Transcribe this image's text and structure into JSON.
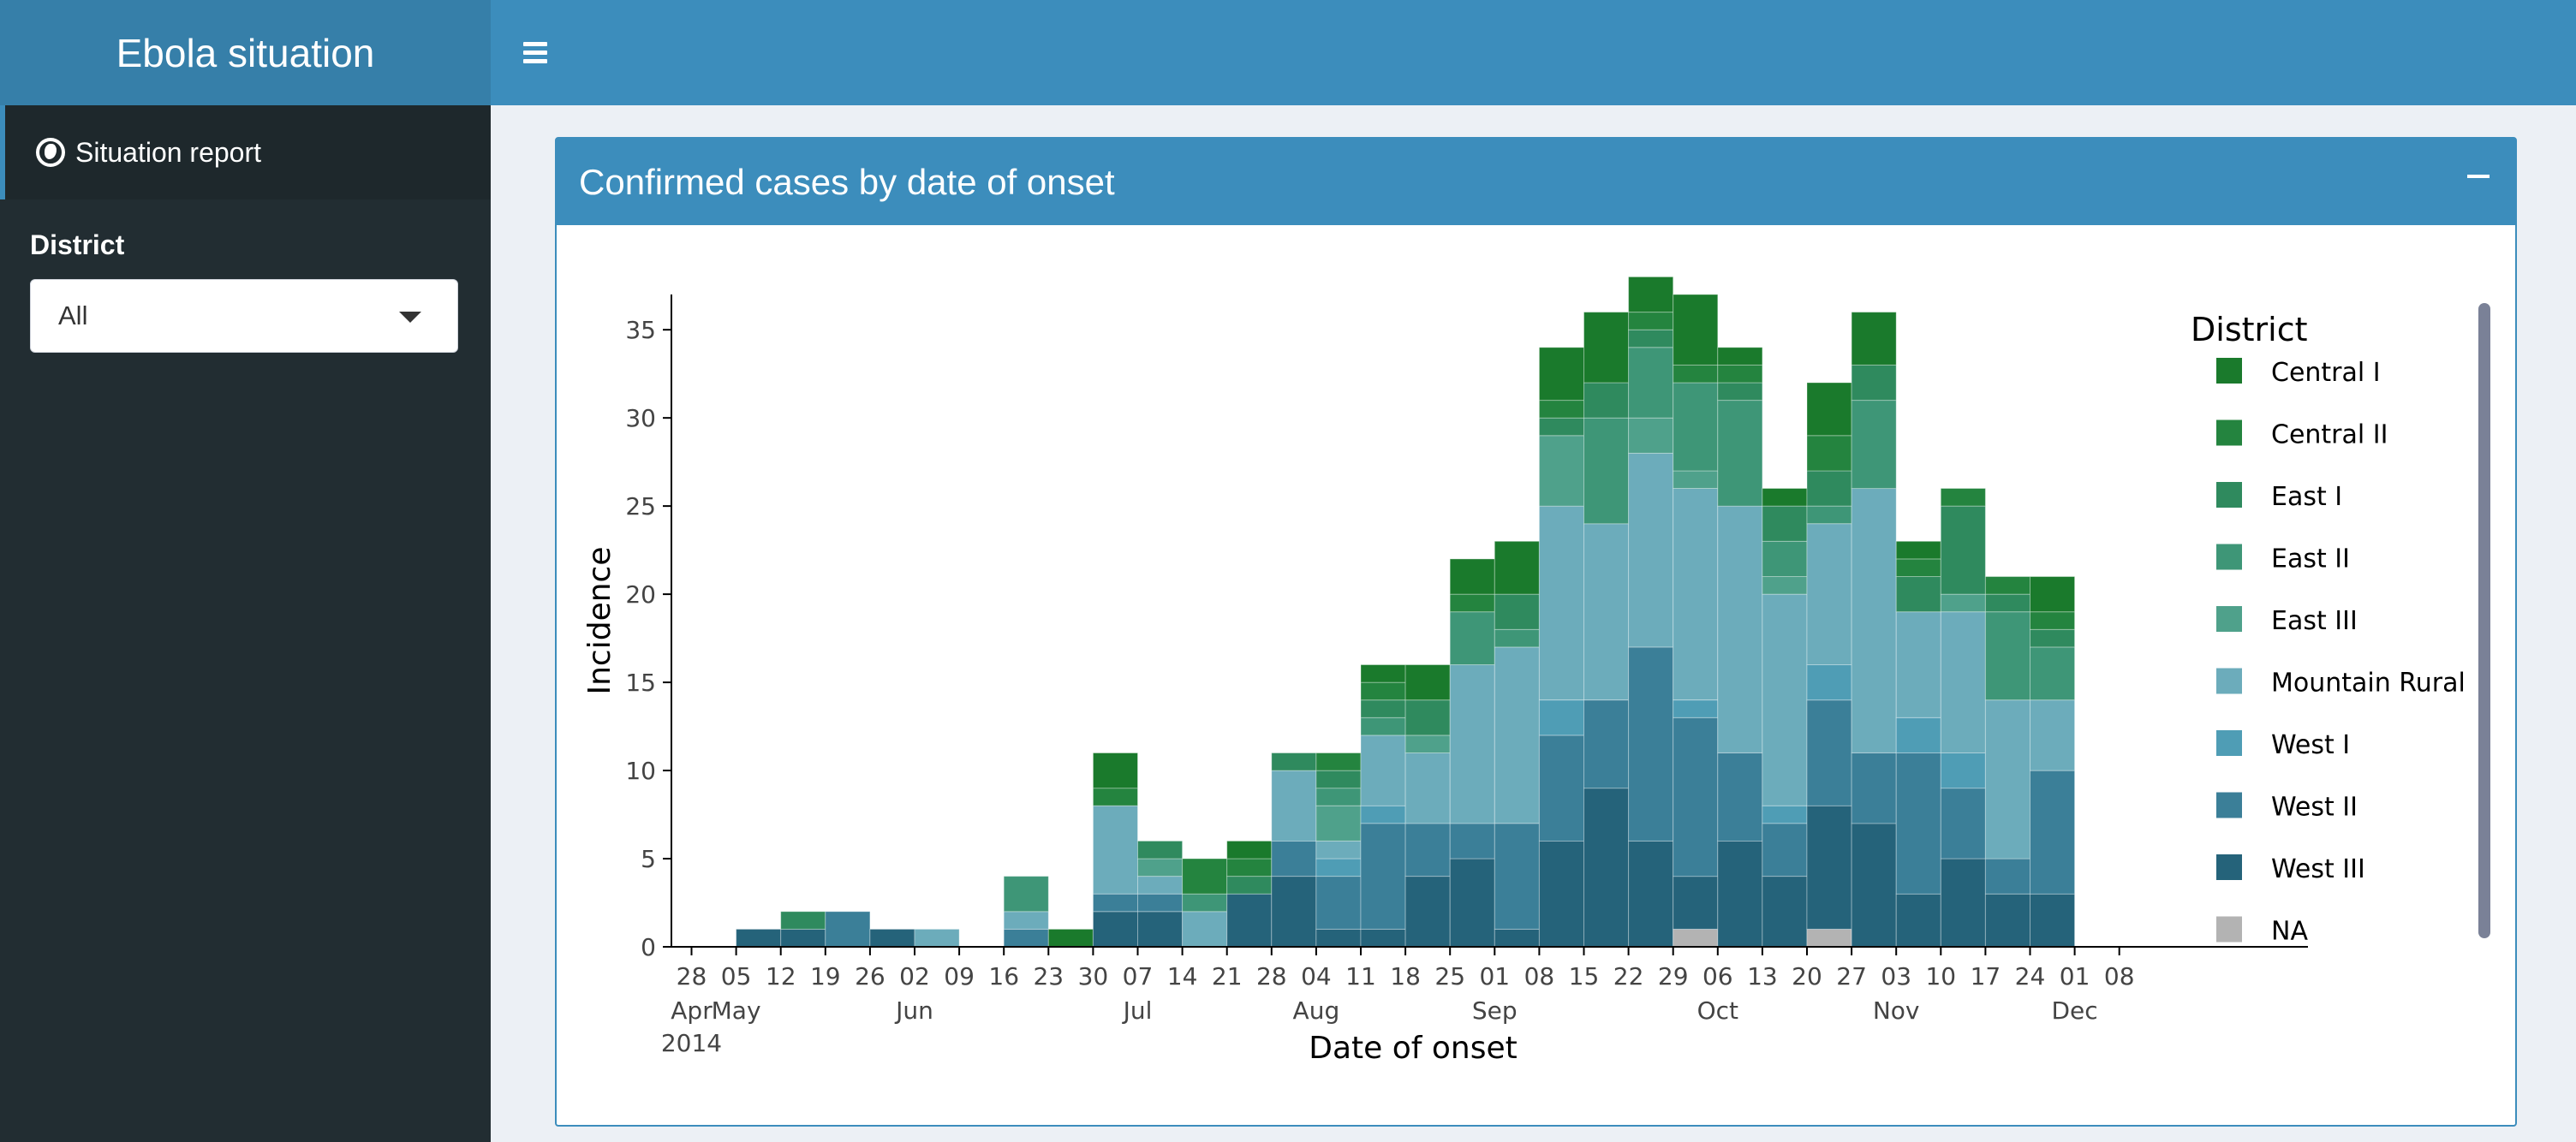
{
  "header": {
    "title": "Ebola situation",
    "menu_icon": "hamburger-icon"
  },
  "sidebar": {
    "items": [
      {
        "label": "Situation report",
        "icon": "globe-icon"
      }
    ],
    "district_label": "District",
    "district_value": "All"
  },
  "box": {
    "title": "Confirmed cases by date of onset",
    "collapse_icon": "minus-icon"
  },
  "colors": {
    "header": "#3c8dbc",
    "logo": "#367fa9",
    "sidebar": "#222d32",
    "Central I": "#1a7a2c",
    "Central II": "#24843f",
    "East I": "#2f8a5e",
    "East II": "#3e9677",
    "East III": "#4fa18b",
    "Mountain Rural": "#6cacbb",
    "West I": "#4f9db5",
    "West II": "#3b7f98",
    "West III": "#25637a",
    "NA": "#b3b3b3"
  },
  "chart_data": {
    "type": "bar",
    "stacked": true,
    "xlabel": "Date of onset",
    "ylabel": "Incidence",
    "ylim": [
      0,
      37
    ],
    "yticks": [
      0,
      5,
      10,
      15,
      20,
      25,
      30,
      35
    ],
    "xtick_labels": [
      {
        "day": "28",
        "month": "Apr",
        "year": "2014"
      },
      {
        "day": "05",
        "month": "May"
      },
      {
        "day": "12"
      },
      {
        "day": "19"
      },
      {
        "day": "26"
      },
      {
        "day": "02",
        "month": "Jun"
      },
      {
        "day": "09"
      },
      {
        "day": "16"
      },
      {
        "day": "23"
      },
      {
        "day": "30"
      },
      {
        "day": "07",
        "month": "Jul"
      },
      {
        "day": "14"
      },
      {
        "day": "21"
      },
      {
        "day": "28"
      },
      {
        "day": "04",
        "month": "Aug"
      },
      {
        "day": "11"
      },
      {
        "day": "18"
      },
      {
        "day": "25"
      },
      {
        "day": "01",
        "month": "Sep"
      },
      {
        "day": "08"
      },
      {
        "day": "15"
      },
      {
        "day": "22"
      },
      {
        "day": "29"
      },
      {
        "day": "06",
        "month": "Oct"
      },
      {
        "day": "13"
      },
      {
        "day": "20"
      },
      {
        "day": "27"
      },
      {
        "day": "03",
        "month": "Nov"
      },
      {
        "day": "10"
      },
      {
        "day": "17"
      },
      {
        "day": "24"
      },
      {
        "day": "01",
        "month": "Dec"
      },
      {
        "day": "08"
      }
    ],
    "legend_title": "District",
    "legend_position": "right",
    "weeks": [
      "2014-04-28",
      "2014-05-05",
      "2014-05-12",
      "2014-05-19",
      "2014-05-26",
      "2014-06-02",
      "2014-06-09",
      "2014-06-16",
      "2014-06-23",
      "2014-06-30",
      "2014-07-07",
      "2014-07-14",
      "2014-07-21",
      "2014-07-28",
      "2014-08-04",
      "2014-08-11",
      "2014-08-18",
      "2014-08-25",
      "2014-09-01",
      "2014-09-08",
      "2014-09-15",
      "2014-09-22",
      "2014-09-29",
      "2014-10-06",
      "2014-10-13",
      "2014-10-20",
      "2014-10-27",
      "2014-11-03",
      "2014-11-10",
      "2014-11-17",
      "2014-11-24"
    ],
    "series": [
      {
        "name": "NA",
        "values": [
          0,
          0,
          0,
          0,
          0,
          0,
          0,
          0,
          0,
          0,
          0,
          0,
          0,
          0,
          0,
          0,
          0,
          0,
          0,
          0,
          0,
          0,
          1,
          0,
          0,
          1,
          0,
          0,
          0,
          0,
          0
        ]
      },
      {
        "name": "West III",
        "values": [
          0,
          1,
          1,
          0,
          1,
          0,
          0,
          0,
          0,
          2,
          2,
          0,
          3,
          4,
          1,
          1,
          4,
          5,
          1,
          6,
          9,
          6,
          3,
          6,
          4,
          7,
          7,
          3,
          5,
          3,
          3
        ]
      },
      {
        "name": "West II",
        "values": [
          0,
          0,
          0,
          2,
          0,
          0,
          0,
          1,
          0,
          1,
          1,
          0,
          0,
          2,
          3,
          6,
          3,
          2,
          6,
          6,
          5,
          11,
          9,
          5,
          3,
          6,
          4,
          8,
          4,
          2,
          7
        ]
      },
      {
        "name": "West I",
        "values": [
          0,
          0,
          0,
          0,
          0,
          0,
          0,
          0,
          0,
          0,
          0,
          0,
          0,
          0,
          1,
          1,
          0,
          0,
          0,
          2,
          0,
          0,
          1,
          0,
          1,
          2,
          0,
          2,
          2,
          0,
          0
        ]
      },
      {
        "name": "Mountain Rural",
        "values": [
          0,
          0,
          0,
          0,
          0,
          1,
          0,
          1,
          0,
          5,
          1,
          2,
          0,
          4,
          1,
          4,
          4,
          9,
          10,
          11,
          10,
          11,
          12,
          14,
          12,
          8,
          15,
          6,
          8,
          9,
          4
        ]
      },
      {
        "name": "East III",
        "values": [
          0,
          0,
          0,
          0,
          0,
          0,
          0,
          0,
          0,
          0,
          1,
          0,
          0,
          0,
          2,
          0,
          1,
          0,
          0,
          4,
          0,
          2,
          1,
          0,
          1,
          0,
          0,
          0,
          1,
          0,
          0
        ]
      },
      {
        "name": "East II",
        "values": [
          0,
          0,
          0,
          0,
          0,
          0,
          0,
          2,
          0,
          0,
          0,
          1,
          0,
          0,
          1,
          1,
          0,
          3,
          1,
          0,
          6,
          4,
          5,
          6,
          2,
          1,
          5,
          0,
          0,
          5,
          3
        ]
      },
      {
        "name": "East I",
        "values": [
          0,
          0,
          1,
          0,
          0,
          0,
          0,
          0,
          0,
          0,
          1,
          0,
          1,
          1,
          1,
          1,
          2,
          0,
          2,
          1,
          2,
          1,
          0,
          1,
          2,
          2,
          2,
          2,
          5,
          1,
          1
        ]
      },
      {
        "name": "Central II",
        "values": [
          0,
          0,
          0,
          0,
          0,
          0,
          0,
          0,
          0,
          1,
          0,
          2,
          1,
          0,
          1,
          1,
          0,
          1,
          0,
          1,
          0,
          1,
          1,
          1,
          0,
          2,
          0,
          1,
          1,
          1,
          1
        ]
      },
      {
        "name": "Central I",
        "values": [
          0,
          0,
          0,
          0,
          0,
          0,
          0,
          0,
          1,
          2,
          0,
          0,
          1,
          0,
          0,
          1,
          2,
          2,
          3,
          3,
          4,
          2,
          4,
          1,
          1,
          3,
          3,
          1,
          0,
          0,
          2
        ]
      }
    ]
  }
}
